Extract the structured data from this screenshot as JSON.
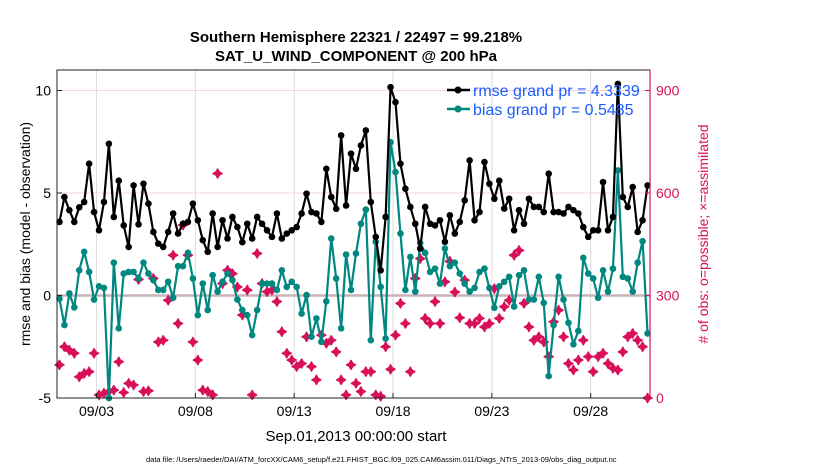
{
  "chart_data": {
    "type": "line",
    "title": "Southern Hemisphere 22321 / 22497 = 99.218%",
    "subtitle": "SAT_U_WIND_COMPONENT @ 200 hPa",
    "xlabel": "Sep.01,2013 00:00:00 start",
    "ylabel": "rmse and bias (model - observation)",
    "ylabel_right": "# of obs: o=possible; ×=assimilated",
    "footer": "data file: /Users/raeder/DAI/ATM_forcXX/CAM6_setup/f.e21.FHIST_BGC.f09_025.CAM6assim.011/Diags_NTrS_2013-09/obs_diag_output.nc",
    "x_start": "2013-09-01 03:00",
    "x_interval_hours": 6,
    "xlim_days_of_sep": [
      1,
      31
    ],
    "x_ticks": [
      3,
      8,
      13,
      18,
      23,
      28
    ],
    "x_tick_labels": [
      "09/03",
      "09/08",
      "09/13",
      "09/18",
      "09/23",
      "09/28"
    ],
    "ylim": [
      -5,
      11
    ],
    "y_ticks": [
      -5,
      0,
      5,
      10
    ],
    "y_tick_labels": [
      "-5",
      "0",
      "5",
      "10"
    ],
    "ylim_right": [
      0,
      960
    ],
    "y_ticks_right": [
      0,
      300,
      600,
      900
    ],
    "y_tick_labels_right": [
      "0",
      "300",
      "600",
      "900"
    ],
    "grid": true,
    "legend_placement": "top-right",
    "colors": {
      "rmse": "#000000",
      "bias": "#00877f",
      "obs": "#d8105a",
      "legend_text": "#1a5cff",
      "zero_line": "#c9b3b8"
    },
    "series": [
      {
        "name": "rmse grand pr = 4.3339",
        "axis": "left",
        "values": [
          3.59,
          4.8,
          4.16,
          3.59,
          4.3,
          4.56,
          6.43,
          4.07,
          3.18,
          4.56,
          7.4,
          3.83,
          5.6,
          3.42,
          2.37,
          5.37,
          3.47,
          5.45,
          4.48,
          3.1,
          2.53,
          2.37,
          3.1,
          4.0,
          3.02,
          3.5,
          3.59,
          4.48,
          3.67,
          2.7,
          2.13,
          4.0,
          2.37,
          3.67,
          2.78,
          3.83,
          3.34,
          2.6,
          3.5,
          2.78,
          3.83,
          3.5,
          3.18,
          2.86,
          4.0,
          2.78,
          3.02,
          3.18,
          3.34,
          4.0,
          4.97,
          4.07,
          4.0,
          3.59,
          6.18,
          4.8,
          4.23,
          7.81,
          4.39,
          6.92,
          6.18,
          7.32,
          8.05,
          4.56,
          2.86,
          1.23,
          3.83,
          10.16,
          9.43,
          6.43,
          5.21,
          4.32,
          3.5,
          2.29,
          4.32,
          3.5,
          3.42,
          3.67,
          2.62,
          3.91,
          3.02,
          3.59,
          4.64,
          6.59,
          3.67,
          4.07,
          6.51,
          5.45,
          4.72,
          5.6,
          4.24,
          4.72,
          3.18,
          4.16,
          3.5,
          4.72,
          4.32,
          4.32,
          4.07,
          5.94,
          4.07,
          4.07,
          4.0,
          4.32,
          4.16,
          4.0,
          3.34,
          2.86,
          3.18,
          3.18,
          5.53,
          3.18,
          3.83,
          10.32,
          4.8,
          4.32,
          5.29,
          3.1,
          3.67,
          5.37
        ]
      },
      {
        "name": "bias grand pr = 0.5485",
        "axis": "left",
        "values": [
          -0.16,
          -1.44,
          0.1,
          -0.58,
          1.23,
          2.13,
          1.15,
          -0.2,
          0.45,
          0.37,
          -5,
          1.6,
          -1.6,
          1.07,
          1.15,
          1.15,
          0.83,
          1.6,
          1.07,
          0.75,
          0.27,
          0.27,
          0.67,
          -0.11,
          1.43,
          1.43,
          2.08,
          0.83,
          -0.96,
          0.58,
          -0.71,
          0.99,
          0.19,
          0.67,
          1.07,
          0.75,
          -0.2,
          -0.71,
          -0.96,
          -1.93,
          -0.71,
          0.58,
          0.58,
          0.58,
          0.27,
          1.23,
          0.42,
          0.67,
          0.42,
          -0.88,
          0.02,
          -2.01,
          -1.12,
          -2.26,
          -0.28,
          2.78,
          0.83,
          -1.6,
          2.0,
          0.27,
          2.05,
          3.5,
          4.19,
          -2.18,
          2.62,
          0.42,
          -2.1,
          7.48,
          6.02,
          3.02,
          0.27,
          1.88,
          0.19,
          2.56,
          2.08,
          1.15,
          1.31,
          0.58,
          2.29,
          1.43,
          1.6,
          1.07,
          0.58,
          0.19,
          0.37,
          1.15,
          1.31,
          0.37,
          -0.6,
          0.45,
          0.67,
          0.91,
          -0.54,
          0.99,
          1.23,
          -0.2,
          -0.2,
          0.91,
          -0.36,
          -3.93,
          -1.44,
          0.91,
          -0.2,
          -1.33,
          -2.38,
          -1.73,
          1.84,
          1.07,
          0.83,
          -0.11,
          1.23,
          0.19,
          1.31,
          6.1,
          0.91,
          0.83,
          0.19,
          1.6,
          2.65,
          -1.85
        ]
      },
      {
        "axis": "right",
        "marker": "assimilated",
        "values": [
          97,
          150,
          140,
          131,
          62,
          72,
          77,
          131,
          9,
          14,
          19,
          23,
          106,
          16,
          43,
          38,
          347,
          19,
          21,
          350,
          164,
          169,
          286,
          418,
          218,
          506,
          418,
          164,
          111,
          23,
          19,
          9,
          657,
          335,
          374,
          364,
          325,
          243,
          316,
          9,
          423,
          335,
          311,
          316,
          282,
          194,
          131,
          111,
          92,
          101,
          179,
          92,
          53,
          184,
          160,
          169,
          135,
          53,
          9,
          97,
          43,
          19,
          77,
          77,
          9,
          5,
          150,
          84,
          184,
          277,
          218,
          77,
          350,
          408,
          233,
          218,
          282,
          218,
          340,
          400,
          310,
          235,
          345,
          218,
          218,
          233,
          208,
          218,
          320,
          233,
          267,
          286,
          418,
          432,
          277,
          208,
          169,
          179,
          164,
          121,
          223,
          257,
          179,
          101,
          82,
          111,
          169,
          121,
          77,
          121,
          131,
          101,
          87,
          82,
          135,
          179,
          189,
          169,
          150,
          0
        ]
      }
    ]
  }
}
